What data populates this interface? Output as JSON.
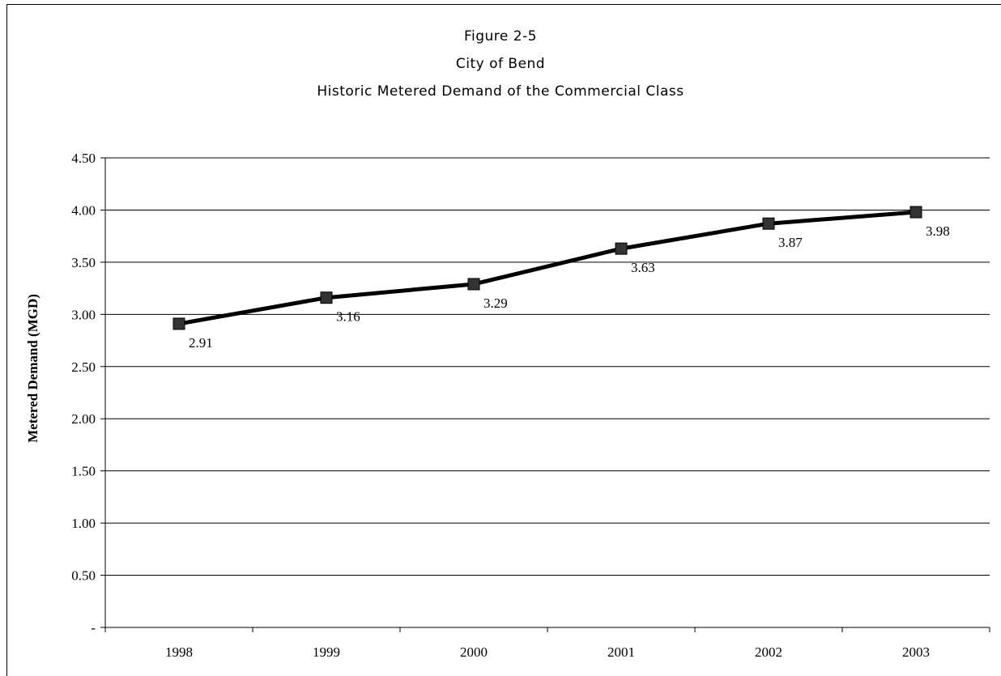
{
  "chart_data": {
    "type": "line",
    "title_lines": [
      "Figure 2-5",
      "City of Bend",
      "Historic Metered Demand of the Commercial Class"
    ],
    "xlabel": "",
    "ylabel": "Metered Demand (MGD)",
    "categories": [
      "1998",
      "1999",
      "2000",
      "2001",
      "2002",
      "2003"
    ],
    "values": [
      2.91,
      3.16,
      3.29,
      3.63,
      3.87,
      3.98
    ],
    "data_labels": [
      "2.91",
      "3.16",
      "3.29",
      "3.63",
      "3.87",
      "3.98"
    ],
    "y_ticks": [
      "-",
      "0.50",
      "1.00",
      "1.50",
      "2.00",
      "2.50",
      "3.00",
      "3.50",
      "4.00",
      "4.50"
    ],
    "ylim": [
      0,
      4.5
    ],
    "grid": true,
    "legend": "none",
    "line_color": "#000000",
    "marker_color": "#333333",
    "marker": "square"
  }
}
